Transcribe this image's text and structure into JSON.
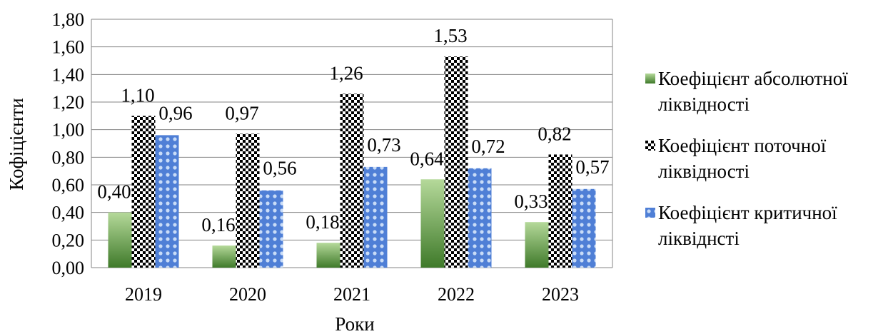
{
  "chart_data": {
    "type": "bar",
    "categories": [
      "2019",
      "2020",
      "2021",
      "2022",
      "2023"
    ],
    "series": [
      {
        "name": "Коефіцієнт абсолютної ліквідності",
        "values": [
          0.4,
          0.16,
          0.18,
          0.64,
          0.33
        ],
        "labels": [
          "0,40",
          "0,16",
          "0,18",
          "0,64",
          "0,33"
        ],
        "pattern": "green-gradient"
      },
      {
        "name": "Коефіцієнт поточної ліквідності",
        "values": [
          1.1,
          0.97,
          1.26,
          1.53,
          0.82
        ],
        "labels": [
          "1,10",
          "0,97",
          "1,26",
          "1,53",
          "0,82"
        ],
        "pattern": "black-checker"
      },
      {
        "name": "Коефіцієнт критичної ліквіднсті",
        "values": [
          0.96,
          0.56,
          0.73,
          0.72,
          0.57
        ],
        "labels": [
          "0,96",
          "0,56",
          "0,73",
          "0,72",
          "0,57"
        ],
        "pattern": "blue-dots"
      }
    ],
    "yticks": [
      "0,00",
      "0,20",
      "0,40",
      "0,60",
      "0,80",
      "1,00",
      "1,20",
      "1,40",
      "1,60",
      "1,80"
    ],
    "ylim": [
      0,
      1.8
    ],
    "xlabel": "Роки",
    "ylabel": "Кофіцієнти",
    "grid": true,
    "legend": "right",
    "colors": {
      "green_dark": "#3f7a2a",
      "green_light": "#b5d99a",
      "checker": "#000000",
      "blue": "#4f7fd6",
      "grid": "#868686"
    }
  },
  "legend": {
    "items": [
      {
        "line1": "Коефіцієнт абсолютної",
        "line2": "ліквідності"
      },
      {
        "line1": "Коефіцієнт поточної",
        "line2": "ліквідності"
      },
      {
        "line1": "Коефіцієнт критичної",
        "line2": "ліквіднсті"
      }
    ]
  }
}
